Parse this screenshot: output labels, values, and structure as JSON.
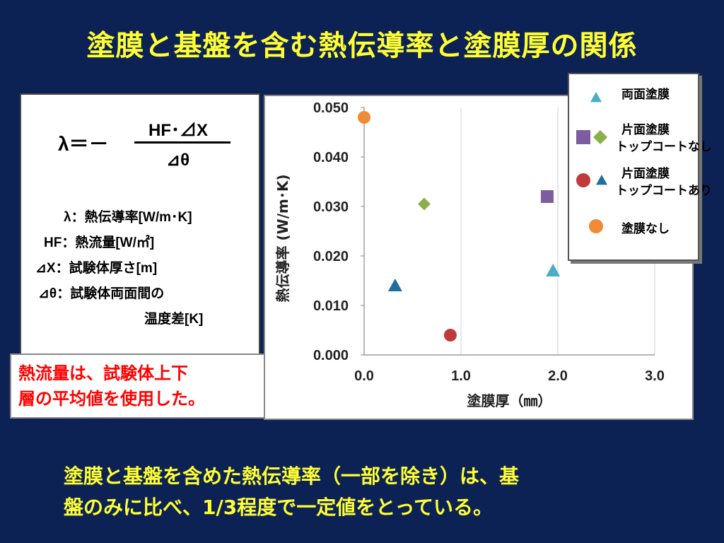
{
  "slide": {
    "title": "塗膜と基盤を含む熱伝導率と塗膜厚の関係",
    "formula": {
      "lhs": "λ＝－",
      "numerator": "HF･⊿X",
      "denominator": "⊿θ"
    },
    "definitions": [
      "λ：熱伝導率[W/m･K]",
      "HF：熱流量[W/㎡]",
      "⊿X：試験体厚さ[m]",
      "⊿θ：試験体両面間の",
      "温度差[K]"
    ],
    "note_lines": [
      "熱流量は、試験体上下",
      "層の平均値を使用した。"
    ],
    "conclusion_lines": [
      "塗膜と基盤を含めた熱伝導率（一部を除き）は、基",
      "盤のみに比べ、1/3程度で一定値をとっている。"
    ]
  },
  "chart_data": {
    "type": "scatter",
    "xlabel": "塗膜厚（㎜）",
    "ylabel": "熱伝導率 (W/m･K)",
    "xlim": [
      0,
      3.0
    ],
    "ylim": [
      0,
      0.05
    ],
    "x_ticks": [
      "0.0",
      "1.0",
      "2.0",
      "3.0"
    ],
    "y_ticks": [
      "0.000",
      "0.010",
      "0.020",
      "0.030",
      "0.040",
      "0.050"
    ],
    "grid": "vertical",
    "legend_position": "top-right outside",
    "series": [
      {
        "name": "両面塗膜",
        "marker": "triangle",
        "color": "#4bacc6",
        "points": [
          [
            1.95,
            0.017
          ]
        ]
      },
      {
        "name": "片面塗膜 トップコートなし",
        "marker": "square",
        "color": "#7e5ca0",
        "points": [
          [
            1.89,
            0.032
          ]
        ]
      },
      {
        "name": "片面塗膜 トップコートなし",
        "marker": "diamond",
        "color": "#8ab04a",
        "points": [
          [
            0.62,
            0.0305
          ]
        ]
      },
      {
        "name": "片面塗膜 トップコートあり",
        "marker": "circle",
        "color": "#c0393b",
        "points": [
          [
            0.89,
            0.004
          ]
        ]
      },
      {
        "name": "片面塗膜 トップコートあり",
        "marker": "triangle",
        "color": "#1f6e9c",
        "points": [
          [
            0.32,
            0.014
          ]
        ]
      },
      {
        "name": "塗膜なし",
        "marker": "circle",
        "color": "#ef8a36",
        "points": [
          [
            0.0,
            0.048
          ]
        ]
      }
    ],
    "legend": [
      {
        "label_lines": [
          "両面塗膜"
        ],
        "markers": [
          {
            "shape": "triangle",
            "color": "#4bacc6"
          }
        ]
      },
      {
        "label_lines": [
          "片面塗膜",
          "トップコートなし"
        ],
        "markers": [
          {
            "shape": "square",
            "color": "#7e5ca0"
          },
          {
            "shape": "diamond",
            "color": "#8ab04a"
          }
        ]
      },
      {
        "label_lines": [
          "片面塗膜",
          "トップコートあり"
        ],
        "markers": [
          {
            "shape": "circle",
            "color": "#c0393b"
          },
          {
            "shape": "triangle",
            "color": "#1f6e9c"
          }
        ]
      },
      {
        "label_lines": [
          "塗膜なし"
        ],
        "markers": [
          {
            "shape": "circle",
            "color": "#ef8a36"
          }
        ]
      }
    ]
  }
}
